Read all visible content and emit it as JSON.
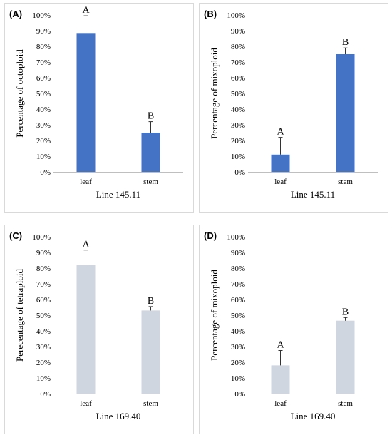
{
  "chart_data": [
    {
      "type": "bar",
      "panel_label": "(A)",
      "categories": [
        "leaf",
        "stem"
      ],
      "values": [
        88.5,
        25
      ],
      "errors": [
        11,
        7
      ],
      "significance": [
        "A",
        "B"
      ],
      "ylabel": "Percentage of octoploid",
      "xlabel": "Line 145.11",
      "ylim": [
        0,
        100
      ],
      "y_ticks": [
        "0%",
        "10%",
        "20%",
        "30%",
        "40%",
        "50%",
        "60%",
        "70%",
        "80%",
        "90%",
        "100%"
      ],
      "color": "#4472c4",
      "grid": false
    },
    {
      "type": "bar",
      "panel_label": "(B)",
      "categories": [
        "leaf",
        "stem"
      ],
      "values": [
        11,
        75
      ],
      "errors": [
        11,
        4
      ],
      "significance": [
        "A",
        "B"
      ],
      "ylabel": "Percentage of mixoploid",
      "xlabel": "Line 145.11",
      "ylim": [
        0,
        100
      ],
      "y_ticks": [
        "0%",
        "10%",
        "20%",
        "30%",
        "40%",
        "50%",
        "60%",
        "70%",
        "80%",
        "90%",
        "100%"
      ],
      "color": "#4472c4",
      "grid": false
    },
    {
      "type": "bar",
      "panel_label": "(C)",
      "categories": [
        "leaf",
        "stem"
      ],
      "values": [
        82,
        53
      ],
      "errors": [
        9.5,
        2.5
      ],
      "significance": [
        "A",
        "B"
      ],
      "ylabel": "Perecentage of tetraploid",
      "xlabel": "Line 169.40",
      "ylim": [
        0,
        100
      ],
      "y_ticks": [
        "0%",
        "10%",
        "20%",
        "30%",
        "40%",
        "50%",
        "60%",
        "70%",
        "80%",
        "90%",
        "100%"
      ],
      "color": "#cfd6df",
      "grid": false
    },
    {
      "type": "bar",
      "panel_label": "(D)",
      "categories": [
        "leaf",
        "stem"
      ],
      "values": [
        18,
        46.5
      ],
      "errors": [
        9.5,
        2
      ],
      "significance": [
        "A",
        "B"
      ],
      "ylabel": "Percentage of mixoploid",
      "xlabel": "Line 169.40",
      "ylim": [
        0,
        100
      ],
      "y_ticks": [
        "0%",
        "10%",
        "20%",
        "30%",
        "40%",
        "50%",
        "60%",
        "70%",
        "80%",
        "90%",
        "100%"
      ],
      "color": "#cfd6df",
      "grid": false
    }
  ]
}
